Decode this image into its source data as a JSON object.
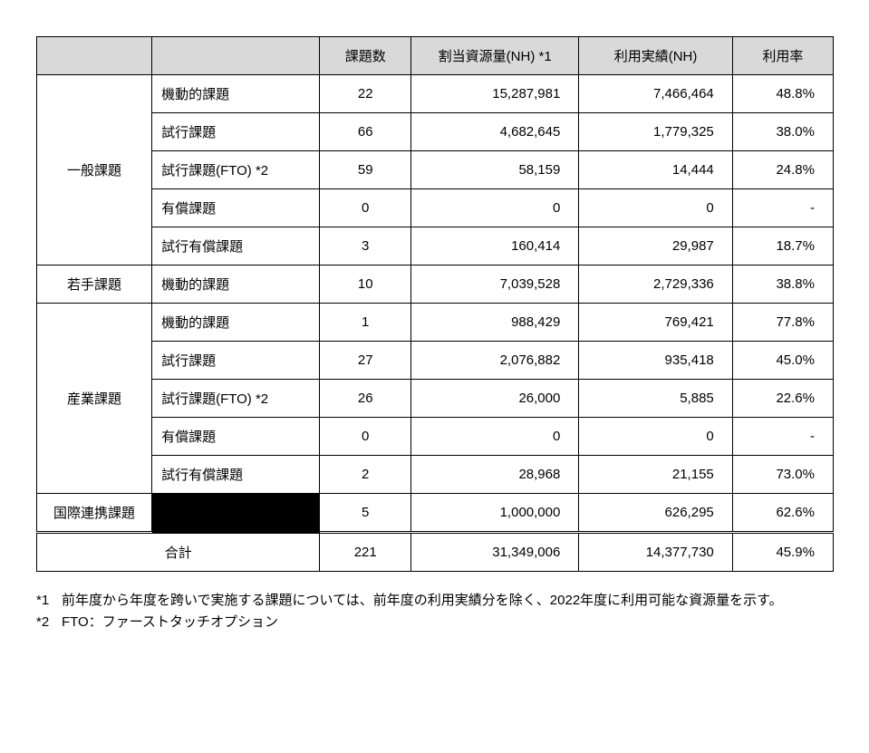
{
  "headers": {
    "col1": "",
    "col2": "",
    "col3": "課題数",
    "col4": "割当資源量(NH) *1",
    "col5": "利用実績(NH)",
    "col6": "利用率"
  },
  "categories": [
    {
      "name": "一般課題",
      "rows": [
        {
          "label": "機動的課題",
          "count": "22",
          "alloc": "15,287,981",
          "actual": "7,466,464",
          "rate": "48.8%"
        },
        {
          "label": "試行課題",
          "count": "66",
          "alloc": "4,682,645",
          "actual": "1,779,325",
          "rate": "38.0%"
        },
        {
          "label": "試行課題(FTO) *2",
          "count": "59",
          "alloc": "58,159",
          "actual": "14,444",
          "rate": "24.8%"
        },
        {
          "label": "有償課題",
          "count": "0",
          "alloc": "0",
          "actual": "0",
          "rate": "-"
        },
        {
          "label": "試行有償課題",
          "count": "3",
          "alloc": "160,414",
          "actual": "29,987",
          "rate": "18.7%"
        }
      ]
    },
    {
      "name": "若手課題",
      "rows": [
        {
          "label": "機動的課題",
          "count": "10",
          "alloc": "7,039,528",
          "actual": "2,729,336",
          "rate": "38.8%"
        }
      ]
    },
    {
      "name": "産業課題",
      "rows": [
        {
          "label": "機動的課題",
          "count": "1",
          "alloc": "988,429",
          "actual": "769,421",
          "rate": "77.8%"
        },
        {
          "label": "試行課題",
          "count": "27",
          "alloc": "2,076,882",
          "actual": "935,418",
          "rate": "45.0%"
        },
        {
          "label": "試行課題(FTO) *2",
          "count": "26",
          "alloc": "26,000",
          "actual": "5,885",
          "rate": "22.6%"
        },
        {
          "label": "有償課題",
          "count": "0",
          "alloc": "0",
          "actual": "0",
          "rate": "-"
        },
        {
          "label": "試行有償課題",
          "count": "2",
          "alloc": "28,968",
          "actual": "21,155",
          "rate": "73.0%"
        }
      ]
    },
    {
      "name": "国際連携課題",
      "blackcol2": true,
      "rows": [
        {
          "label": "",
          "count": "5",
          "alloc": "1,000,000",
          "actual": "626,295",
          "rate": "62.6%"
        }
      ]
    }
  ],
  "total": {
    "label": "合計",
    "count": "221",
    "alloc": "31,349,006",
    "actual": "14,377,730",
    "rate": "45.9%"
  },
  "footnotes": [
    {
      "marker": "*1",
      "text": "前年度から年度を跨いで実施する課題については、前年度の利用実績分を除く、2022年度に利用可能な資源量を示す。"
    },
    {
      "marker": "*2",
      "text": "FTO：ファーストタッチオプション"
    }
  ]
}
